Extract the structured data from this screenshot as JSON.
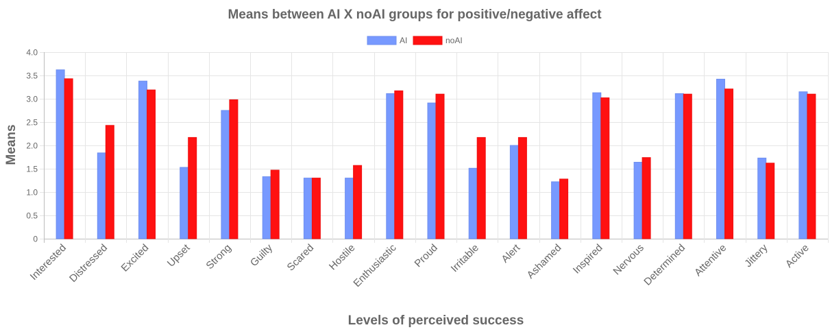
{
  "chart_data": {
    "type": "bar",
    "title": "Means between AI X noAI groups for positive/negative affect",
    "xlabel": "Levels of perceived success",
    "ylabel": "Means",
    "ylim": [
      0,
      4.0
    ],
    "yticks": [
      "0",
      "0.5",
      "1.0",
      "1.5",
      "2.0",
      "2.5",
      "3.0",
      "3.5",
      "4.0"
    ],
    "grid": true,
    "legend_position": "top-center",
    "categories": [
      "Interested",
      "Distressed",
      "Excited",
      "Upset",
      "Strong",
      "Guilty",
      "Scared",
      "Hostile",
      "Enthusiastic",
      "Proud",
      "Irritable",
      "Alert",
      "Ashamed",
      "Inspired",
      "Nervous",
      "Determined",
      "Attentive",
      "Jittery",
      "Active"
    ],
    "series": [
      {
        "name": "AI",
        "color": "#7799ff",
        "values": [
          3.62,
          1.84,
          3.38,
          1.53,
          2.75,
          1.33,
          1.3,
          1.3,
          3.11,
          2.91,
          1.51,
          2.0,
          1.22,
          3.13,
          1.64,
          3.11,
          3.42,
          1.73,
          3.15
        ]
      },
      {
        "name": "noAI",
        "color": "#ff1111",
        "values": [
          3.43,
          2.43,
          3.19,
          2.17,
          2.98,
          1.47,
          1.3,
          1.57,
          3.17,
          3.1,
          2.17,
          2.17,
          1.28,
          3.02,
          1.74,
          3.1,
          3.21,
          1.62,
          3.1
        ]
      }
    ]
  }
}
